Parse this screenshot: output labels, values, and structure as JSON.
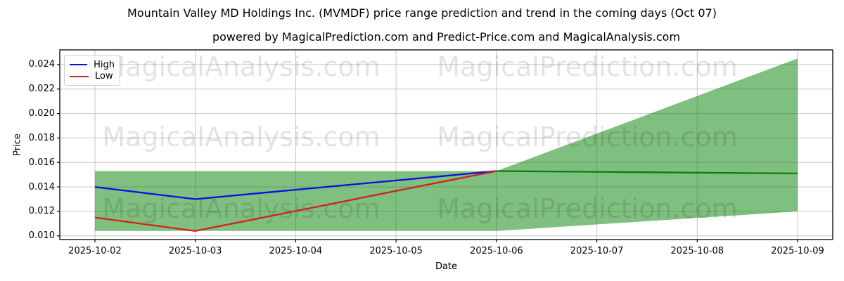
{
  "chart_data": {
    "type": "line",
    "title": "Mountain Valley MD Holdings Inc. (MVMDF) price range prediction and trend in the coming days (Oct 07)",
    "subtitle": "powered by MagicalPrediction.com and Predict-Price.com and MagicalAnalysis.com",
    "xlabel": "Date",
    "ylabel": "Price",
    "grid": true,
    "categories": [
      "2025-10-02",
      "2025-10-03",
      "2025-10-04",
      "2025-10-05",
      "2025-10-06",
      "2025-10-07",
      "2025-10-08",
      "2025-10-09"
    ],
    "yticks": {
      "values": [
        0.01,
        0.012,
        0.014,
        0.016,
        0.018,
        0.02,
        0.022,
        0.024
      ],
      "labels": [
        "0.010",
        "0.012",
        "0.014",
        "0.016",
        "0.018",
        "0.020",
        "0.022",
        "0.024"
      ]
    },
    "xlim": [
      -0.35,
      7.35
    ],
    "ylim": [
      0.0097,
      0.0252
    ],
    "series": [
      {
        "name": "High",
        "color": "#0d0dde",
        "x": [
          0,
          1,
          2,
          3,
          4
        ],
        "values": [
          0.014,
          0.013,
          0.01377,
          0.01453,
          0.0153
        ]
      },
      {
        "name": "Low",
        "color": "#d32020",
        "x": [
          0,
          1,
          2,
          3,
          4
        ],
        "values": [
          0.0115,
          0.0104,
          0.01203,
          0.01367,
          0.0153
        ]
      },
      {
        "name": "Trend",
        "color": "#0f7d0f",
        "x": [
          4,
          5,
          6,
          7
        ],
        "values": [
          0.0153,
          0.015233,
          0.015167,
          0.0151
        ]
      }
    ],
    "band": {
      "name": "predicted-price-range",
      "color": "#008000",
      "opacity": 0.5,
      "points": [
        [
          0,
          0.0153
        ],
        [
          4,
          0.0153
        ],
        [
          7,
          0.0245
        ],
        [
          7,
          0.012
        ],
        [
          4,
          0.0104
        ],
        [
          0,
          0.0104
        ]
      ]
    },
    "legend": {
      "position": "upper-left",
      "entries": [
        {
          "label": "High",
          "color": "#0d0dde"
        },
        {
          "label": "Low",
          "color": "#d32020"
        }
      ]
    },
    "watermarks": {
      "left_text": "MagicalAnalysis.com",
      "right_text": "MagicalPrediction.com"
    }
  }
}
